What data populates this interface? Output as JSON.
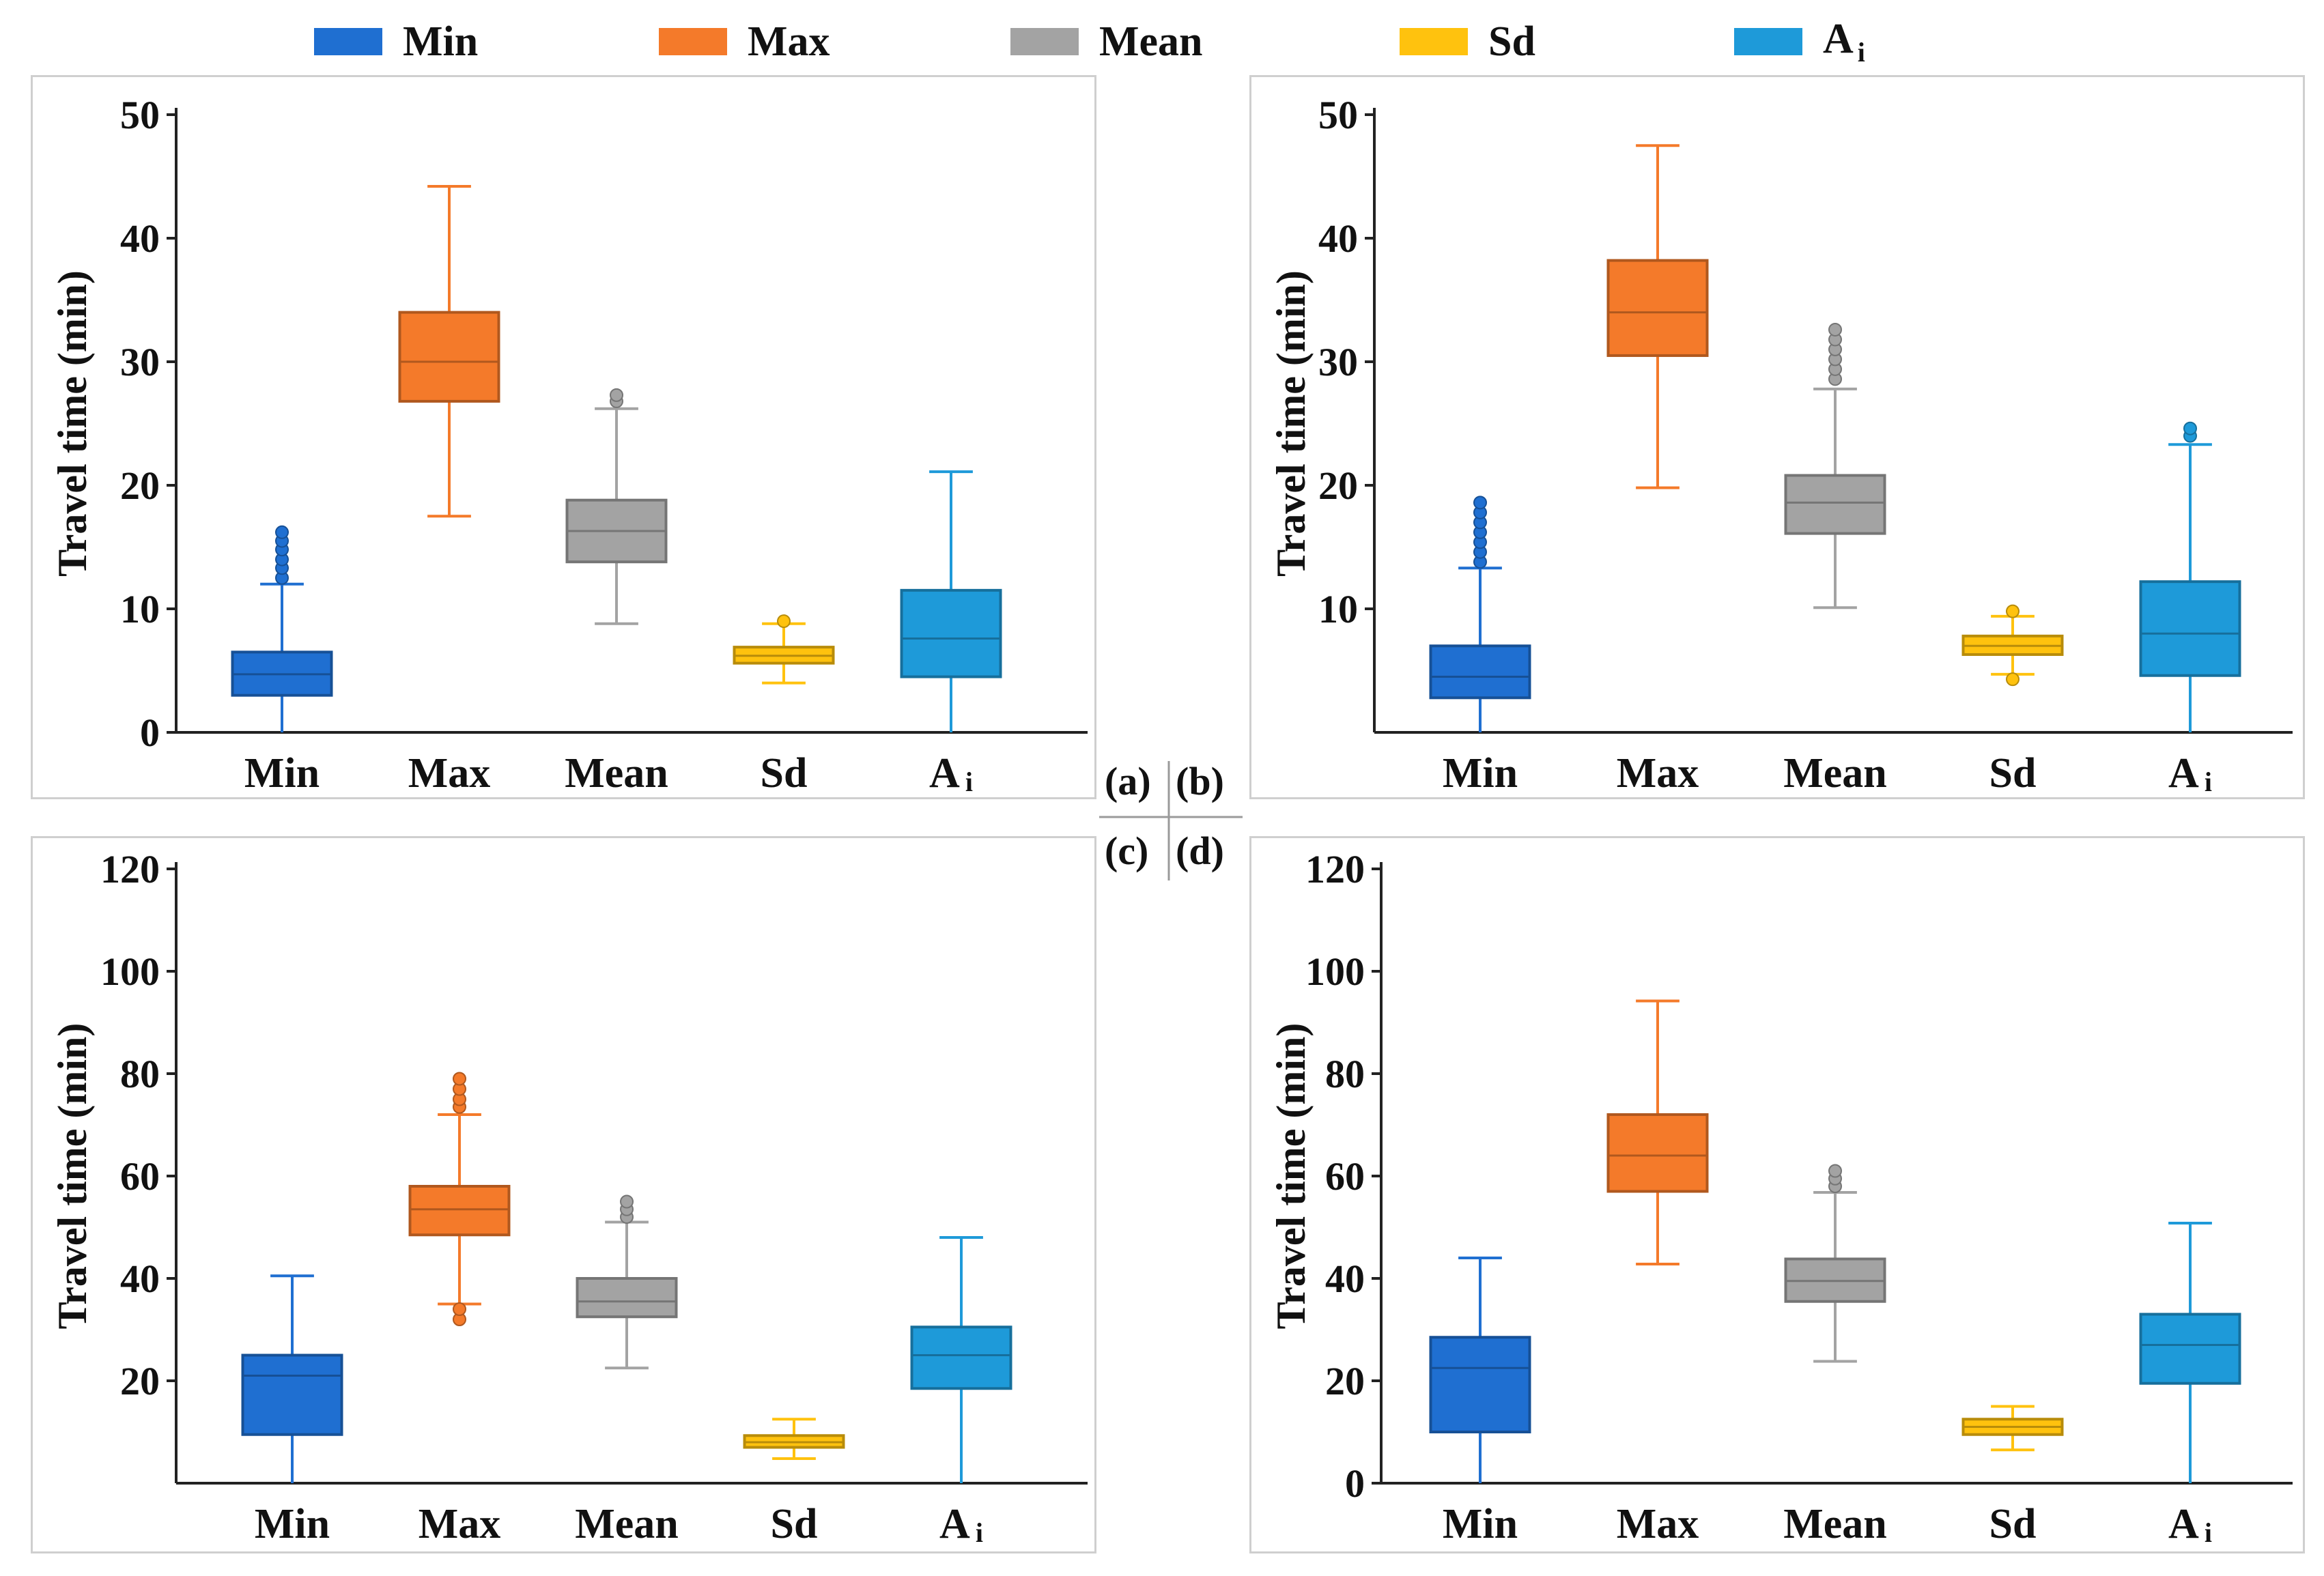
{
  "legend": [
    {
      "label": "Min",
      "color": "#1f6fd1"
    },
    {
      "label": "Max",
      "color": "#f47a2a"
    },
    {
      "label": "Mean",
      "color": "#a3a3a3"
    },
    {
      "label": "Sd",
      "color": "#ffc20e"
    },
    {
      "label": "Ai",
      "label_main": "A",
      "label_sub": "i",
      "color": "#1e9ad9"
    }
  ],
  "panel_labels": {
    "a": "(a)",
    "b": "(b)",
    "c": "(c)",
    "d": "(d)"
  },
  "chart_data": [
    {
      "id": "a",
      "type": "box",
      "ylabel": "Travel time (min)",
      "ylim": [
        0,
        50
      ],
      "yticks": [
        0,
        10,
        20,
        30,
        40,
        50
      ],
      "categories": [
        "Min",
        "Max",
        "Mean",
        "Sd",
        "Ai"
      ],
      "boxes": [
        {
          "category": "Min",
          "whisker_low": 0,
          "q1": 3.0,
          "median": 4.7,
          "q3": 6.5,
          "whisker_high": 12.0,
          "outliers": [
            12.5,
            13.3,
            14.0,
            14.8,
            15.5,
            16.2
          ]
        },
        {
          "category": "Max",
          "whisker_low": 17.5,
          "q1": 26.8,
          "median": 30.0,
          "q3": 34.0,
          "whisker_high": 44.2,
          "outliers": []
        },
        {
          "category": "Mean",
          "whisker_low": 8.8,
          "q1": 13.8,
          "median": 16.3,
          "q3": 18.8,
          "whisker_high": 26.2,
          "outliers": [
            26.8,
            27.3
          ]
        },
        {
          "category": "Sd",
          "whisker_low": 4.0,
          "q1": 5.6,
          "median": 6.2,
          "q3": 6.9,
          "whisker_high": 8.8,
          "outliers": [
            9.0
          ]
        },
        {
          "category": "Ai",
          "whisker_low": 0,
          "q1": 4.5,
          "median": 7.6,
          "q3": 11.5,
          "whisker_high": 21.1,
          "outliers": []
        }
      ]
    },
    {
      "id": "b",
      "type": "box",
      "ylabel": "Travel time (min)",
      "ylim": [
        0,
        50
      ],
      "yticks": [
        10,
        20,
        30,
        40,
        50
      ],
      "categories": [
        "Min",
        "Max",
        "Mean",
        "Sd",
        "Ai"
      ],
      "boxes": [
        {
          "category": "Min",
          "whisker_low": 0,
          "q1": 2.8,
          "median": 4.5,
          "q3": 7.0,
          "whisker_high": 13.3,
          "outliers": [
            13.8,
            14.6,
            15.4,
            16.2,
            17.0,
            17.8,
            18.6
          ]
        },
        {
          "category": "Max",
          "whisker_low": 19.8,
          "q1": 30.5,
          "median": 34.0,
          "q3": 38.2,
          "whisker_high": 47.5,
          "outliers": []
        },
        {
          "category": "Mean",
          "whisker_low": 10.1,
          "q1": 16.1,
          "median": 18.6,
          "q3": 20.8,
          "whisker_high": 27.8,
          "outliers": [
            28.6,
            29.4,
            30.2,
            31.0,
            31.8,
            32.6
          ]
        },
        {
          "category": "Sd",
          "whisker_low": 4.7,
          "q1": 6.3,
          "median": 7.0,
          "q3": 7.8,
          "whisker_high": 9.4,
          "outliers": [
            4.3,
            9.8
          ]
        },
        {
          "category": "Ai",
          "whisker_low": 0,
          "q1": 4.6,
          "median": 8.0,
          "q3": 12.2,
          "whisker_high": 23.3,
          "outliers": [
            24.0,
            24.6
          ]
        }
      ]
    },
    {
      "id": "c",
      "type": "box",
      "ylabel": "Travel time (min)",
      "ylim": [
        0,
        120
      ],
      "yticks": [
        20,
        40,
        60,
        80,
        100,
        120
      ],
      "categories": [
        "Min",
        "Max",
        "Mean",
        "Sd",
        "Ai"
      ],
      "boxes": [
        {
          "category": "Min",
          "whisker_low": 0,
          "q1": 9.5,
          "median": 21.0,
          "q3": 25.0,
          "whisker_high": 40.5,
          "outliers": []
        },
        {
          "category": "Max",
          "whisker_low": 35.0,
          "q1": 48.5,
          "median": 53.5,
          "q3": 58.0,
          "whisker_high": 72.0,
          "outliers": [
            32.0,
            34.0,
            73.5,
            75.0,
            77.0,
            79.0
          ]
        },
        {
          "category": "Mean",
          "whisker_low": 22.5,
          "q1": 32.5,
          "median": 35.5,
          "q3": 40.0,
          "whisker_high": 51.0,
          "outliers": [
            52.0,
            53.5,
            55.0
          ]
        },
        {
          "category": "Sd",
          "whisker_low": 4.8,
          "q1": 7.0,
          "median": 8.0,
          "q3": 9.3,
          "whisker_high": 12.5,
          "outliers": []
        },
        {
          "category": "Ai",
          "whisker_low": 0,
          "q1": 18.5,
          "median": 25.0,
          "q3": 30.5,
          "whisker_high": 48.0,
          "outliers": []
        }
      ]
    },
    {
      "id": "d",
      "type": "box",
      "ylabel": "Travel time (min)",
      "ylim": [
        0,
        120
      ],
      "yticks": [
        0,
        20,
        40,
        60,
        80,
        100,
        120
      ],
      "categories": [
        "Min",
        "Max",
        "Mean",
        "Sd",
        "Ai"
      ],
      "boxes": [
        {
          "category": "Min",
          "whisker_low": 0,
          "q1": 10.0,
          "median": 22.5,
          "q3": 28.5,
          "whisker_high": 44.0,
          "outliers": []
        },
        {
          "category": "Max",
          "whisker_low": 42.8,
          "q1": 57.0,
          "median": 64.0,
          "q3": 72.0,
          "whisker_high": 94.2,
          "outliers": []
        },
        {
          "category": "Mean",
          "whisker_low": 23.8,
          "q1": 35.5,
          "median": 39.5,
          "q3": 43.8,
          "whisker_high": 56.8,
          "outliers": [
            58.0,
            59.5,
            61.0
          ]
        },
        {
          "category": "Sd",
          "whisker_low": 6.5,
          "q1": 9.5,
          "median": 11.0,
          "q3": 12.5,
          "whisker_high": 15.0,
          "outliers": []
        },
        {
          "category": "Ai",
          "whisker_low": 0,
          "q1": 19.5,
          "median": 27.0,
          "q3": 33.0,
          "whisker_high": 50.8,
          "outliers": []
        }
      ]
    }
  ]
}
